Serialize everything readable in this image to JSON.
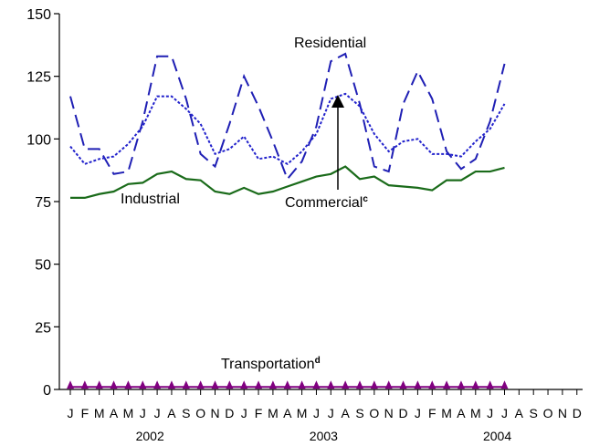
{
  "chart_data": {
    "type": "line",
    "title": "",
    "xlabel": "",
    "ylabel": "",
    "ylim": [
      0,
      150
    ],
    "yticks": [
      0,
      25,
      50,
      75,
      100,
      125,
      150
    ],
    "month_labels": [
      "J",
      "F",
      "M",
      "A",
      "M",
      "J",
      "J",
      "A",
      "S",
      "O",
      "N",
      "D",
      "J",
      "F",
      "M",
      "A",
      "M",
      "J",
      "J",
      "A",
      "S",
      "O",
      "N",
      "D",
      "J",
      "F",
      "M",
      "A",
      "M",
      "J",
      "J",
      "A",
      "S",
      "O",
      "N",
      "D"
    ],
    "years": [
      "2002",
      "2003",
      "2004"
    ],
    "grid": false,
    "legend": "none",
    "series": [
      {
        "name": "Residential",
        "color": "#1f1fb4",
        "style": "long-dash",
        "values": [
          117,
          96,
          96,
          86,
          87,
          107,
          133,
          133,
          116,
          94,
          89,
          106,
          125,
          113,
          99,
          84,
          91,
          105,
          131,
          134,
          114,
          89,
          87,
          114,
          127,
          116,
          95,
          88,
          92,
          107,
          130
        ]
      },
      {
        "name": "Commercial",
        "name_superscript": "c",
        "color": "#2222cc",
        "style": "dotted",
        "values": [
          97,
          90,
          92,
          93,
          98,
          105,
          117,
          117,
          112,
          106,
          94,
          96,
          101,
          92,
          93,
          90,
          95,
          102,
          116,
          118,
          113,
          102,
          95,
          99,
          100,
          94,
          94,
          93,
          99,
          104,
          114
        ]
      },
      {
        "name": "Industrial",
        "color": "#1a6b1a",
        "style": "solid",
        "values": [
          76.5,
          76.5,
          78,
          79,
          82,
          82.5,
          86,
          87,
          84,
          83.5,
          79,
          78,
          80.5,
          78,
          79,
          81,
          83,
          85,
          86,
          89,
          84,
          85,
          81.5,
          81,
          80.5,
          79.5,
          83.5,
          83.5,
          87,
          87,
          88.5
        ]
      },
      {
        "name": "Transportation",
        "name_superscript": "d",
        "color": "#800080",
        "style": "triangle-markers",
        "values": [
          1,
          1,
          1,
          1,
          1,
          1,
          1,
          1,
          1,
          1,
          1,
          1,
          1,
          1,
          1,
          1,
          1,
          1,
          1,
          1,
          1,
          1,
          1,
          1,
          1,
          1,
          1,
          1,
          1,
          1,
          1
        ]
      }
    ]
  }
}
